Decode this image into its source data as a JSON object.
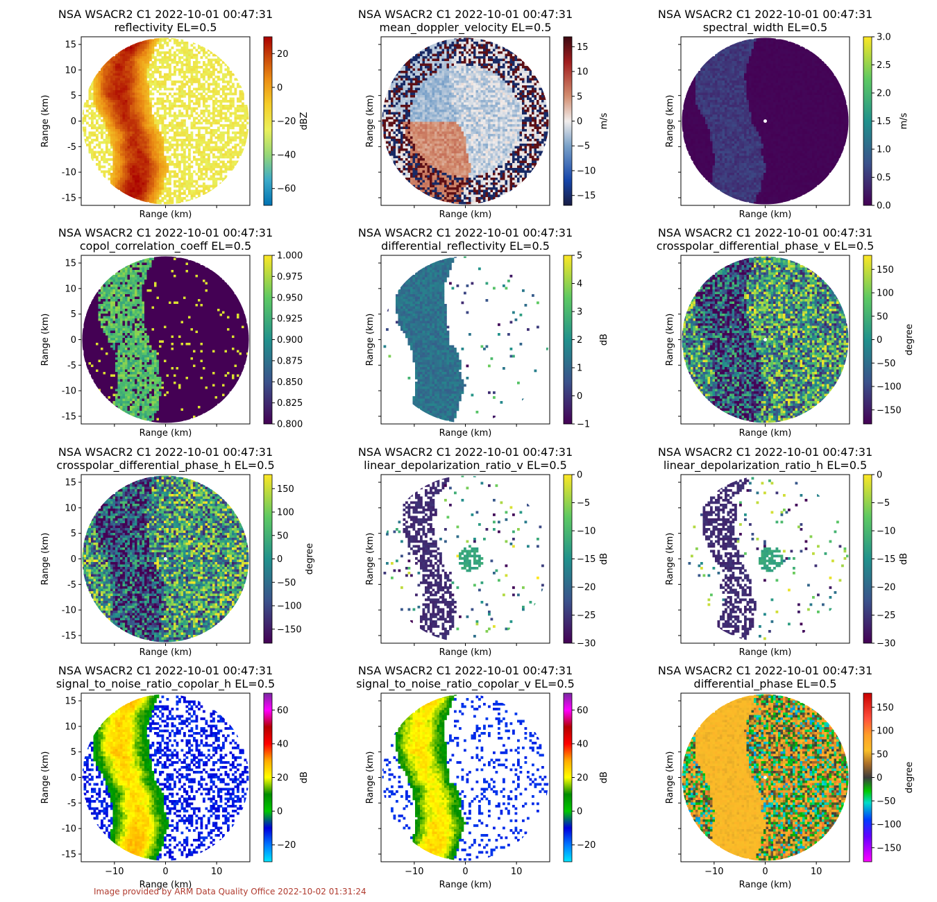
{
  "footer": "Image provided by ARM Data Quality Office 2022-10-02 01:31:24",
  "colors": {
    "axis": "#000000",
    "footer": "#b03a2e"
  },
  "chart_data": [
    {
      "type": "heatmap",
      "title": "NSA WSACR2 C1 2022-10-01 00:47:31",
      "subtitle": "reflectivity  EL=0.5",
      "xlabel": "Range (km)",
      "ylabel": "Range (km)",
      "xlim": [
        -16.5,
        16.5
      ],
      "ylim": [
        -16.5,
        16.5
      ],
      "xticks": [
        -10,
        0,
        10
      ],
      "yticks": [
        -15,
        -10,
        -5,
        0,
        5,
        10,
        15
      ],
      "show_xticklabels": false,
      "show_yticklabels": true,
      "colorbar": {
        "label": "dBZ",
        "min": -70,
        "max": 30,
        "ticks": [
          -60,
          -40,
          -20,
          0,
          20
        ],
        "colormap": "reflectivity"
      },
      "pattern": "refl"
    },
    {
      "type": "heatmap",
      "title": "NSA WSACR2 C1 2022-10-01 00:47:31",
      "subtitle": "mean_doppler_velocity  EL=0.5",
      "xlabel": "Range (km)",
      "ylabel": "Range (km)",
      "xlim": [
        -16.5,
        16.5
      ],
      "ylim": [
        -16.5,
        16.5
      ],
      "xticks": [
        -10,
        0,
        10
      ],
      "yticks": [
        -15,
        -10,
        -5,
        0,
        5,
        10,
        15
      ],
      "show_xticklabels": false,
      "show_yticklabels": false,
      "colorbar": {
        "label": "m/s",
        "min": -17,
        "max": 17,
        "ticks": [
          -15,
          -10,
          -5,
          0,
          5,
          10,
          15
        ],
        "colormap": "balance"
      },
      "pattern": "vel"
    },
    {
      "type": "heatmap",
      "title": "NSA WSACR2 C1 2022-10-01 00:47:31",
      "subtitle": "spectral_width  EL=0.5",
      "xlabel": "Range (km)",
      "ylabel": "Range (km)",
      "xlim": [
        -16.5,
        16.5
      ],
      "ylim": [
        -16.5,
        16.5
      ],
      "xticks": [
        -10,
        0,
        10
      ],
      "yticks": [
        -15,
        -10,
        -5,
        0,
        5,
        10,
        15
      ],
      "show_xticklabels": false,
      "show_yticklabels": false,
      "colorbar": {
        "label": "m/s",
        "min": 0,
        "max": 3,
        "ticks": [
          0.0,
          0.5,
          1.0,
          1.5,
          2.0,
          2.5,
          3.0
        ],
        "tick_labels": [
          "0.0",
          "0.5",
          "1.0",
          "1.5",
          "2.0",
          "2.5",
          "3.0"
        ],
        "colormap": "viridis"
      },
      "pattern": "sw"
    },
    {
      "type": "heatmap",
      "title": "NSA WSACR2 C1 2022-10-01 00:47:31",
      "subtitle": "copol_correlation_coeff  EL=0.5",
      "xlabel": "Range (km)",
      "ylabel": "Range (km)",
      "xlim": [
        -16.5,
        16.5
      ],
      "ylim": [
        -16.5,
        16.5
      ],
      "xticks": [
        -10,
        0,
        10
      ],
      "yticks": [
        -15,
        -10,
        -5,
        0,
        5,
        10,
        15
      ],
      "show_xticklabels": false,
      "show_yticklabels": true,
      "colorbar": {
        "label": "",
        "min": 0.8,
        "max": 1.0,
        "ticks": [
          0.8,
          0.825,
          0.85,
          0.875,
          0.9,
          0.925,
          0.95,
          0.975,
          1.0
        ],
        "tick_labels": [
          "0.800",
          "0.825",
          "0.850",
          "0.875",
          "0.900",
          "0.925",
          "0.950",
          "0.975",
          "1.000"
        ],
        "colormap": "viridis"
      },
      "pattern": "rho"
    },
    {
      "type": "heatmap",
      "title": "NSA WSACR2 C1 2022-10-01 00:47:31",
      "subtitle": "differential_reflectivity  EL=0.5",
      "xlabel": "Range (km)",
      "ylabel": "Range (km)",
      "xlim": [
        -16.5,
        16.5
      ],
      "ylim": [
        -16.5,
        16.5
      ],
      "xticks": [
        -10,
        0,
        10
      ],
      "yticks": [
        -15,
        -10,
        -5,
        0,
        5,
        10,
        15
      ],
      "show_xticklabels": false,
      "show_yticklabels": false,
      "colorbar": {
        "label": "dB",
        "min": -1,
        "max": 5,
        "ticks": [
          -1,
          0,
          1,
          2,
          3,
          4,
          5
        ],
        "colormap": "viridis"
      },
      "pattern": "zdr"
    },
    {
      "type": "heatmap",
      "title": "NSA WSACR2 C1 2022-10-01 00:47:31",
      "subtitle": "crosspolar_differential_phase_v  EL=0.5",
      "xlabel": "Range (km)",
      "ylabel": "Range (km)",
      "xlim": [
        -16.5,
        16.5
      ],
      "ylim": [
        -16.5,
        16.5
      ],
      "xticks": [
        -10,
        0,
        10
      ],
      "yticks": [
        -15,
        -10,
        -5,
        0,
        5,
        10,
        15
      ],
      "show_xticklabels": false,
      "show_yticklabels": false,
      "colorbar": {
        "label": "degree",
        "min": -180,
        "max": 180,
        "ticks": [
          -150,
          -100,
          -50,
          0,
          50,
          100,
          150
        ],
        "colormap": "viridis"
      },
      "pattern": "phase"
    },
    {
      "type": "heatmap",
      "title": "NSA WSACR2 C1 2022-10-01 00:47:31",
      "subtitle": "crosspolar_differential_phase_h  EL=0.5",
      "xlabel": "Range (km)",
      "ylabel": "Range (km)",
      "xlim": [
        -16.5,
        16.5
      ],
      "ylim": [
        -16.5,
        16.5
      ],
      "xticks": [
        -10,
        0,
        10
      ],
      "yticks": [
        -15,
        -10,
        -5,
        0,
        5,
        10,
        15
      ],
      "show_xticklabels": false,
      "show_yticklabels": true,
      "colorbar": {
        "label": "degree",
        "min": -180,
        "max": 180,
        "ticks": [
          -150,
          -100,
          -50,
          0,
          50,
          100,
          150
        ],
        "colormap": "viridis"
      },
      "pattern": "phase"
    },
    {
      "type": "heatmap",
      "title": "NSA WSACR2 C1 2022-10-01 00:47:31",
      "subtitle": "linear_depolarization_ratio_v  EL=0.5",
      "xlabel": "Range (km)",
      "ylabel": "Range (km)",
      "xlim": [
        -16.5,
        16.5
      ],
      "ylim": [
        -16.5,
        16.5
      ],
      "xticks": [
        -10,
        0,
        10
      ],
      "yticks": [
        -15,
        -10,
        -5,
        0,
        5,
        10,
        15
      ],
      "show_xticklabels": false,
      "show_yticklabels": false,
      "colorbar": {
        "label": "dB",
        "min": -30,
        "max": 0,
        "ticks": [
          -30,
          -25,
          -20,
          -15,
          -10,
          -5,
          0
        ],
        "colormap": "viridis"
      },
      "pattern": "ldr"
    },
    {
      "type": "heatmap",
      "title": "NSA WSACR2 C1 2022-10-01 00:47:31",
      "subtitle": "linear_depolarization_ratio_h  EL=0.5",
      "xlabel": "Range (km)",
      "ylabel": "Range (km)",
      "xlim": [
        -16.5,
        16.5
      ],
      "ylim": [
        -16.5,
        16.5
      ],
      "xticks": [
        -10,
        0,
        10
      ],
      "yticks": [
        -15,
        -10,
        -5,
        0,
        5,
        10,
        15
      ],
      "show_xticklabels": false,
      "show_yticklabels": false,
      "colorbar": {
        "label": "dB",
        "min": -30,
        "max": 0,
        "ticks": [
          -30,
          -25,
          -20,
          -15,
          -10,
          -5,
          0
        ],
        "colormap": "viridis"
      },
      "pattern": "ldr"
    },
    {
      "type": "heatmap",
      "title": "NSA WSACR2 C1 2022-10-01 00:47:31",
      "subtitle": "signal_to_noise_ratio_copolar_h  EL=0.5",
      "xlabel": "Range (km)",
      "ylabel": "Range (km)",
      "xlim": [
        -16.5,
        16.5
      ],
      "ylim": [
        -16.5,
        16.5
      ],
      "xticks": [
        -10,
        0,
        10
      ],
      "yticks": [
        -15,
        -10,
        -5,
        0,
        5,
        10,
        15
      ],
      "show_xticklabels": true,
      "show_yticklabels": true,
      "colorbar": {
        "label": "dB",
        "min": -30,
        "max": 70,
        "ticks": [
          -20,
          0,
          20,
          40,
          60
        ],
        "colormap": "snr"
      },
      "pattern": "snr_h"
    },
    {
      "type": "heatmap",
      "title": "NSA WSACR2 C1 2022-10-01 00:47:31",
      "subtitle": "signal_to_noise_ratio_copolar_v  EL=0.5",
      "xlabel": "Range (km)",
      "ylabel": "Range (km)",
      "xlim": [
        -16.5,
        16.5
      ],
      "ylim": [
        -16.5,
        16.5
      ],
      "xticks": [
        -10,
        0,
        10
      ],
      "yticks": [
        -15,
        -10,
        -5,
        0,
        5,
        10,
        15
      ],
      "show_xticklabels": true,
      "show_yticklabels": false,
      "colorbar": {
        "label": "dB",
        "min": -30,
        "max": 70,
        "ticks": [
          -20,
          0,
          20,
          40,
          60
        ],
        "colormap": "snr"
      },
      "pattern": "snr_v"
    },
    {
      "type": "heatmap",
      "title": "NSA WSACR2 C1 2022-10-01 00:47:31",
      "subtitle": "differential_phase  EL=0.5",
      "xlabel": "Range (km)",
      "ylabel": "Range (km)",
      "xlim": [
        -16.5,
        16.5
      ],
      "ylim": [
        -16.5,
        16.5
      ],
      "xticks": [
        -10,
        0,
        10
      ],
      "yticks": [
        -15,
        -10,
        -5,
        0,
        5,
        10,
        15
      ],
      "show_xticklabels": true,
      "show_yticklabels": false,
      "colorbar": {
        "label": "degree",
        "min": -180,
        "max": 180,
        "ticks": [
          -150,
          -100,
          -50,
          0,
          50,
          100,
          150
        ],
        "colormap": "phase_wheel"
      },
      "pattern": "phidp"
    }
  ]
}
